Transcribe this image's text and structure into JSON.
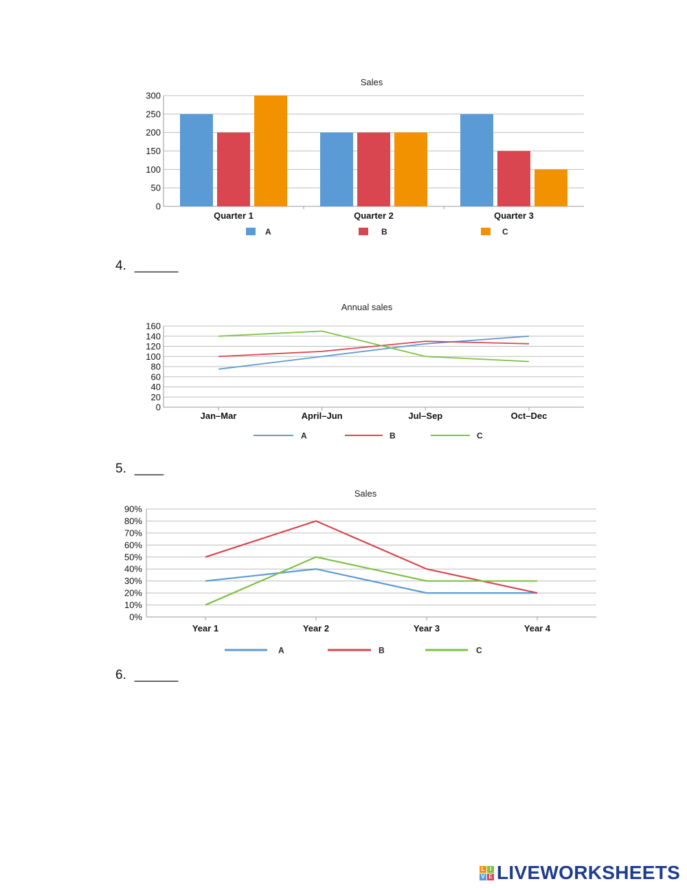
{
  "questions": [
    {
      "number": "4.",
      "blank": "______"
    },
    {
      "number": "5.",
      "blank": "____"
    },
    {
      "number": "6.",
      "blank": "______"
    }
  ],
  "logo": {
    "text": "LIVEWORKSHEETS",
    "blocks": [
      "L",
      "I",
      "V",
      "E"
    ]
  },
  "colors": {
    "A": "#5b9bd5",
    "B": "#d9464f",
    "C": "#f39200",
    "C_line": "#7cc142"
  },
  "chart_data": [
    {
      "type": "bar",
      "title": "Sales",
      "categories": [
        "Quarter 1",
        "Quarter 2",
        "Quarter 3"
      ],
      "series": [
        {
          "name": "A",
          "values": [
            250,
            200,
            250
          ]
        },
        {
          "name": "B",
          "values": [
            200,
            200,
            150
          ]
        },
        {
          "name": "C",
          "values": [
            300,
            200,
            100
          ]
        }
      ],
      "ylim": [
        0,
        300
      ],
      "yticks": [
        "0",
        "50",
        "100",
        "150",
        "200",
        "250",
        "300"
      ],
      "xlabel": "",
      "ylabel": "",
      "grid": true,
      "legend": "bottom"
    },
    {
      "type": "line",
      "title": "Annual sales",
      "categories": [
        "Jan–Mar",
        "April–Jun",
        "Jul–Sep",
        "Oct–Dec"
      ],
      "series": [
        {
          "name": "A",
          "values": [
            75,
            100,
            125,
            140
          ]
        },
        {
          "name": "B",
          "values": [
            100,
            110,
            130,
            125
          ]
        },
        {
          "name": "C",
          "values": [
            140,
            150,
            100,
            90
          ]
        }
      ],
      "ylim": [
        0,
        160
      ],
      "yticks": [
        "0",
        "20",
        "40",
        "60",
        "80",
        "100",
        "120",
        "140",
        "160"
      ],
      "xlabel": "",
      "ylabel": "",
      "grid": true,
      "legend": "bottom"
    },
    {
      "type": "line",
      "title": "Sales",
      "categories": [
        "Year 1",
        "Year 2",
        "Year 3",
        "Year 4"
      ],
      "series": [
        {
          "name": "A",
          "values": [
            30,
            40,
            20,
            20
          ]
        },
        {
          "name": "B",
          "values": [
            50,
            80,
            40,
            20
          ]
        },
        {
          "name": "C",
          "values": [
            10,
            50,
            30,
            30
          ]
        }
      ],
      "ylim": [
        0,
        90
      ],
      "yticks": [
        "0%",
        "10%",
        "20%",
        "30%",
        "40%",
        "50%",
        "60%",
        "70%",
        "80%",
        "90%"
      ],
      "xlabel": "",
      "ylabel": "",
      "grid": true,
      "legend": "bottom"
    }
  ]
}
